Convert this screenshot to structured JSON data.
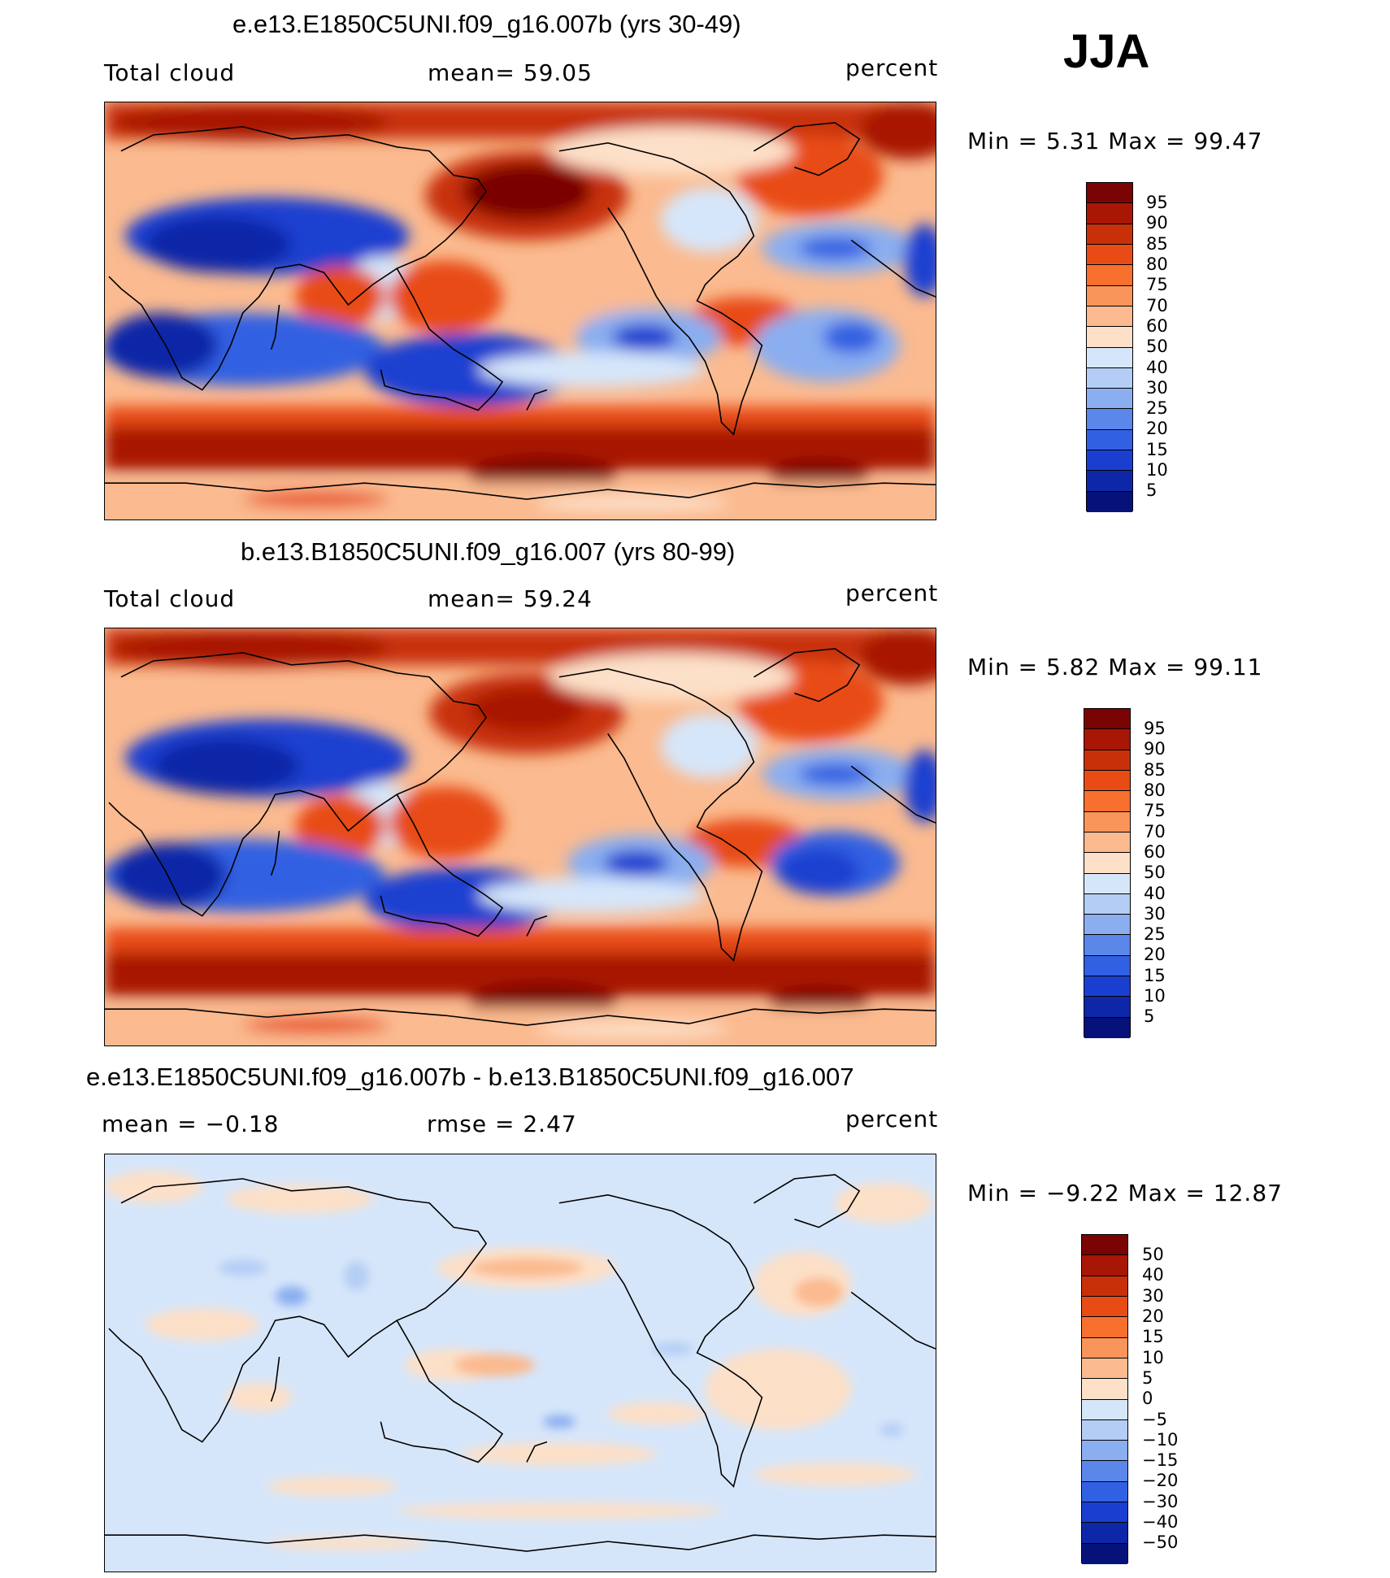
{
  "season": "JJA",
  "panels": [
    {
      "title": "e.e13.E1850C5UNI.f09_g16.007b (yrs 30-49)",
      "left_label": "Total cloud",
      "mid_label": "mean=   59.05",
      "right_label": "percent",
      "minmax": "Min =    5.31  Max =   99.47",
      "colorbar": {
        "labels": [
          "95",
          "90",
          "85",
          "80",
          "75",
          "70",
          "60",
          "50",
          "40",
          "30",
          "25",
          "20",
          "15",
          "10",
          "5"
        ],
        "colors": [
          "#7a0403",
          "#a81605",
          "#c8300a",
          "#e84c14",
          "#f7702e",
          "#f9955a",
          "#fbba8f",
          "#fde0c8",
          "#d6e6fa",
          "#b3cdf5",
          "#8aaef0",
          "#5b86ea",
          "#3260e2",
          "#1a3fd0",
          "#0d27a8",
          "#06117a"
        ]
      }
    },
    {
      "title": "b.e13.B1850C5UNI.f09_g16.007 (yrs 80-99)",
      "left_label": "Total cloud",
      "mid_label": "mean=   59.24",
      "right_label": "percent",
      "minmax": "Min =    5.82  Max =   99.11",
      "colorbar": {
        "labels": [
          "95",
          "90",
          "85",
          "80",
          "75",
          "70",
          "60",
          "50",
          "40",
          "30",
          "25",
          "20",
          "15",
          "10",
          "5"
        ],
        "colors": [
          "#7a0403",
          "#a81605",
          "#c8300a",
          "#e84c14",
          "#f7702e",
          "#f9955a",
          "#fbba8f",
          "#fde0c8",
          "#d6e6fa",
          "#b3cdf5",
          "#8aaef0",
          "#5b86ea",
          "#3260e2",
          "#1a3fd0",
          "#0d27a8",
          "#06117a"
        ]
      }
    },
    {
      "title": "e.e13.E1850C5UNI.f09_g16.007b - b.e13.B1850C5UNI.f09_g16.007",
      "left_label": "mean =   −0.18",
      "mid_label": "rmse =    2.47",
      "right_label": "percent",
      "minmax": "Min =   −9.22  Max =   12.87",
      "colorbar": {
        "labels": [
          "50",
          "40",
          "30",
          "20",
          "15",
          "10",
          "5",
          "0",
          "−5",
          "−10",
          "−15",
          "−20",
          "−30",
          "−40",
          "−50"
        ],
        "colors": [
          "#7a0403",
          "#a81605",
          "#c8300a",
          "#e84c14",
          "#f7702e",
          "#f9955a",
          "#fbba8f",
          "#fde0c8",
          "#d6e6fa",
          "#b3cdf5",
          "#8aaef0",
          "#5b86ea",
          "#3260e2",
          "#1a3fd0",
          "#0d27a8",
          "#06117a"
        ]
      }
    }
  ]
}
